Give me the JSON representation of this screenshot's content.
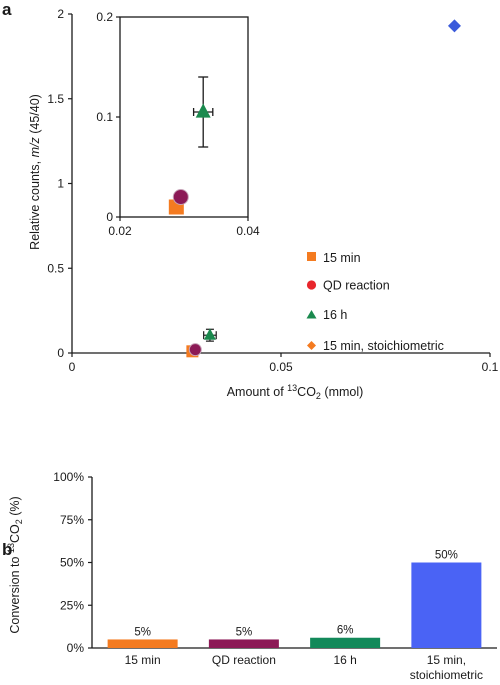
{
  "panels": {
    "a": "a",
    "b": "b"
  },
  "chart_data": [
    {
      "type": "scatter",
      "panel": "a",
      "xlabel_main": "Amount of ",
      "xlabel_sup": "13",
      "xlabel_co": "CO",
      "xlabel_sub": "2",
      "xlabel_unit": " (mmol)",
      "ylabel_main": "Relative counts, ",
      "ylabel_italic": "m/z",
      "ylabel_unit": " (45/40)",
      "xlim": [
        0,
        0.1
      ],
      "ylim": [
        0,
        2
      ],
      "xticks": [
        {
          "value": 0,
          "label": "0"
        },
        {
          "value": 0.05,
          "label": "0.05"
        },
        {
          "value": 0.1,
          "label": "0.1"
        }
      ],
      "yticks": [
        {
          "value": 0,
          "label": "0"
        },
        {
          "value": 0.5,
          "label": "0.5"
        },
        {
          "value": 1,
          "label": "1"
        },
        {
          "value": 1.5,
          "label": "1.5"
        },
        {
          "value": 2,
          "label": "2"
        }
      ],
      "series": [
        {
          "name": "15 min",
          "marker": "square",
          "color": "#f47b20",
          "points": [
            {
              "x": 0.0288,
              "y": 0.01
            }
          ]
        },
        {
          "name": "QD reaction",
          "marker": "circle",
          "color": "#e8262c",
          "main_color": "#8c1a56",
          "points": [
            {
              "x": 0.0295,
              "y": 0.02
            }
          ]
        },
        {
          "name": "16 h",
          "marker": "triangle",
          "color": "#1b8a4e",
          "points": [
            {
              "x": 0.033,
              "y": 0.105,
              "xerr": 0.0015,
              "yerr": 0.035
            }
          ]
        },
        {
          "name": "15 min, stoichiometric",
          "marker": "diamond",
          "color": "#f47b20",
          "main_color": "#3b5bdb",
          "points": [
            {
              "x": 0.0915,
              "y": 1.93
            }
          ]
        }
      ],
      "legend_position": "bottom-right",
      "inset": {
        "xlim": [
          0.02,
          0.04
        ],
        "ylim": [
          0,
          0.2
        ],
        "xticks": [
          {
            "value": 0.02,
            "label": "0.02"
          },
          {
            "value": 0.04,
            "label": "0.04"
          }
        ],
        "yticks": [
          {
            "value": 0,
            "label": "0"
          },
          {
            "value": 0.1,
            "label": "0.1"
          },
          {
            "value": 0.2,
            "label": "0.2"
          }
        ],
        "points": [
          {
            "marker": "square",
            "color": "#f47b20",
            "x": 0.0288,
            "y": 0.01
          },
          {
            "marker": "circle",
            "color": "#8c1a56",
            "x": 0.0295,
            "y": 0.02
          },
          {
            "marker": "triangle",
            "color": "#1b8a4e",
            "x": 0.033,
            "y": 0.105,
            "xerr": 0.0015,
            "yerr": 0.035
          }
        ]
      }
    },
    {
      "type": "bar",
      "panel": "b",
      "ylabel_main": "Conversion to ",
      "ylabel_sup": "13",
      "ylabel_co": "CO",
      "ylabel_sub": "2",
      "ylabel_unit": " (%)",
      "ylim": [
        0,
        100
      ],
      "yticks": [
        {
          "value": 0,
          "label": "0%"
        },
        {
          "value": 25,
          "label": "25%"
        },
        {
          "value": 50,
          "label": "50%"
        },
        {
          "value": 75,
          "label": "75%"
        },
        {
          "value": 100,
          "label": "100%"
        }
      ],
      "categories": [
        {
          "line1": "15 min",
          "line2": ""
        },
        {
          "line1": "QD reaction",
          "line2": ""
        },
        {
          "line1": "16 h",
          "line2": ""
        },
        {
          "line1": "15 min,",
          "line2": "stoichiometric"
        }
      ],
      "values": [
        5,
        5,
        6,
        50
      ],
      "value_labels": [
        "5%",
        "5%",
        "6%",
        "50%"
      ],
      "colors": [
        "#f47b20",
        "#8c1a56",
        "#13895a",
        "#4a63f5"
      ]
    }
  ]
}
